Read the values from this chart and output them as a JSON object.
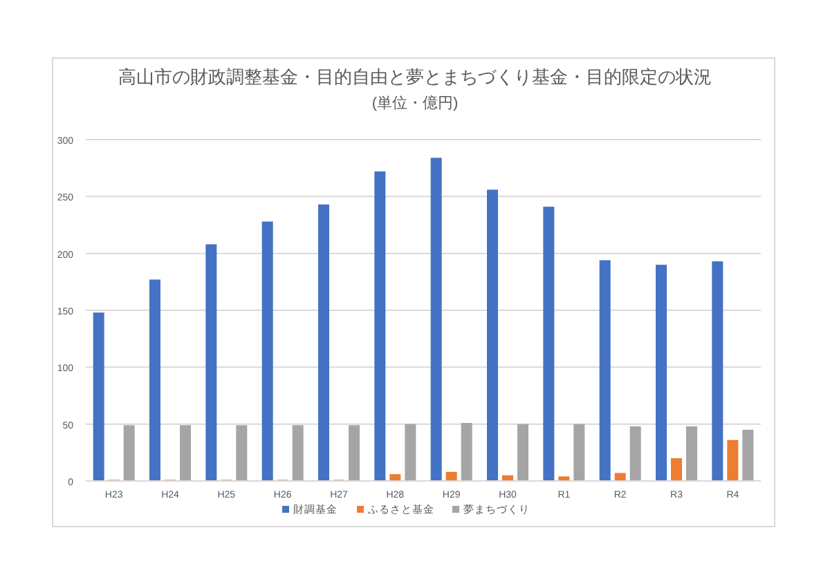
{
  "chart_data": {
    "type": "bar",
    "title": "高山市の財政調整基金・目的自由と夢とまちづくり基金・目的限定の状況",
    "subtitle": "(単位・億円)",
    "categories": [
      "H23",
      "H24",
      "H25",
      "H26",
      "H27",
      "H28",
      "H29",
      "H30",
      "R1",
      "R2",
      "R3",
      "R4"
    ],
    "series": [
      {
        "name": "財調基金",
        "color": "#4472c4",
        "values": [
          148,
          177,
          208,
          228,
          243,
          272,
          284,
          256,
          241,
          194,
          190,
          193
        ]
      },
      {
        "name": "ふるさと基金",
        "color": "#ed7d31",
        "values": [
          1,
          1,
          1,
          1,
          1,
          6,
          8,
          5,
          4,
          7,
          20,
          36
        ]
      },
      {
        "name": "夢まちづくり",
        "color": "#a5a5a5",
        "values": [
          49,
          49,
          49,
          49,
          49,
          50,
          51,
          50,
          50,
          48,
          48,
          45
        ]
      }
    ],
    "ylim": [
      0,
      300
    ],
    "yticks": [
      0,
      50,
      100,
      150,
      200,
      250,
      300
    ],
    "grid": "y",
    "legend": "bottom"
  }
}
